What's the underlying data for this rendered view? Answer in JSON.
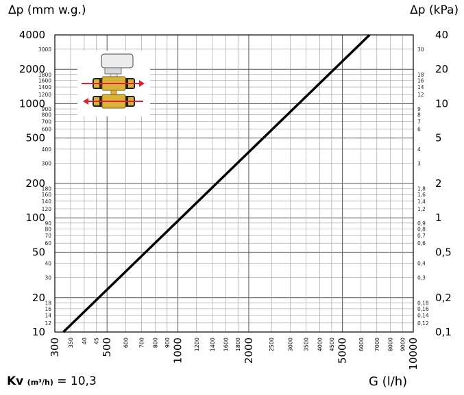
{
  "header": {
    "left_axis_title": "Δp (mm w.g.)",
    "right_axis_title": "Δp (kPa)"
  },
  "footer": {
    "kv_label": "Kv",
    "kv_unit": "(m³/h)",
    "kv_value": "= 10,3",
    "x_axis_title": "G (l/h)"
  },
  "colors": {
    "line": "#000000",
    "grid": "#9a9a9a",
    "arrow": "#e0202a",
    "valve_body": "#d9b23a"
  },
  "icons": [
    "valve-actuator-icon"
  ],
  "chart_data": {
    "type": "line",
    "scale": "log-log",
    "xlim": [
      300,
      10000
    ],
    "ylim_left": [
      10,
      4000
    ],
    "ylim_right": [
      0.1,
      40
    ],
    "x_ticks_major": [
      "300",
      "500",
      "1000",
      "2000",
      "5000",
      "10000"
    ],
    "x_ticks_minor": [
      "350",
      "40",
      "45",
      "600",
      "700",
      "800",
      "900",
      "1200",
      "1400",
      "1600",
      "1800",
      "2500",
      "3000",
      "3500",
      "4000",
      "4500",
      "6000",
      "7000",
      "8000",
      "9000"
    ],
    "y_ticks_left_major": [
      "10",
      "20",
      "50",
      "100",
      "200",
      "500",
      "1000",
      "2000",
      "4000"
    ],
    "y_ticks_left_minor": [
      "12",
      "14",
      "16",
      "18",
      "30",
      "40",
      "60",
      "70",
      "80",
      "90",
      "120",
      "140",
      "160",
      "180",
      "300",
      "400",
      "600",
      "700",
      "800",
      "900",
      "1200",
      "1400",
      "1600",
      "1800",
      "3000"
    ],
    "y_ticks_right_major": [
      "0,1",
      "0,2",
      "0,5",
      "1",
      "2",
      "5",
      "10",
      "20",
      "40"
    ],
    "y_ticks_right_minor": [
      "0,12",
      "0,14",
      "0,16",
      "0,18",
      "0,3",
      "0,4",
      "0,6",
      "0,7",
      "0,8",
      "0,9",
      "1,2",
      "1,4",
      "1,6",
      "1,8",
      "3",
      "4",
      "6",
      "7",
      "8",
      "9",
      "12",
      "14",
      "16",
      "18",
      "30"
    ],
    "series": [
      {
        "x": [
          326,
          6520
        ],
        "y": [
          10,
          4000
        ]
      }
    ],
    "grid": true
  }
}
